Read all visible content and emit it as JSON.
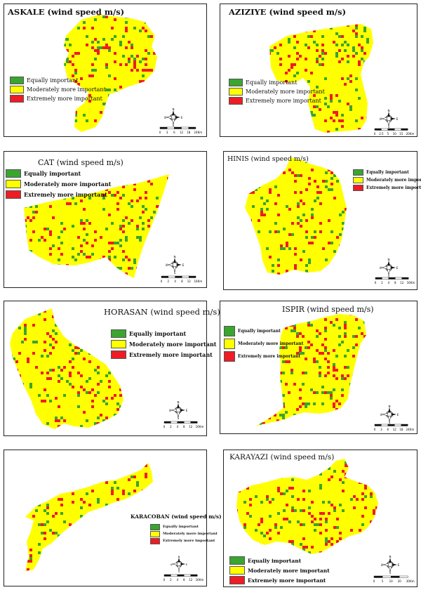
{
  "legend": {
    "labels": [
      "Equally important",
      "Moderately more important",
      "Extremely more important"
    ],
    "colors": [
      "#3aa52f",
      "#ffff00",
      "#ee1c24"
    ]
  },
  "compass": {
    "n": "N",
    "s": "S",
    "e": "E",
    "w": "W"
  },
  "panels": [
    {
      "title": "ASKALE (wind speed m/s)",
      "scale": "0 3 6 12 18 24 Km"
    },
    {
      "title": "AZIZIYE (wind speed m/s)",
      "scale": "0 2.5 5 10 15 20 Km"
    },
    {
      "title": "CAT (wind speed m/s)",
      "scale": "0 2 4 8 12 16 Km"
    },
    {
      "title": "HINIS (wind speed m/s)",
      "scale": "0 2 4 8 12 16 Km"
    },
    {
      "title": "HORASAN (wind speed m/s)",
      "scale": "0 2 4 8 12 16 Km"
    },
    {
      "title": "ISPIR (wind speed m/s)",
      "scale": "0 3 6 12 18 24 Km"
    },
    {
      "title": "KARACOBAN (wind speed m/s)",
      "scale": "0 2 4 8 12 16 Km"
    },
    {
      "title": "KARAYAZI (wind speed m/s)",
      "scale": "0 5 10 20 30 Km"
    }
  ]
}
